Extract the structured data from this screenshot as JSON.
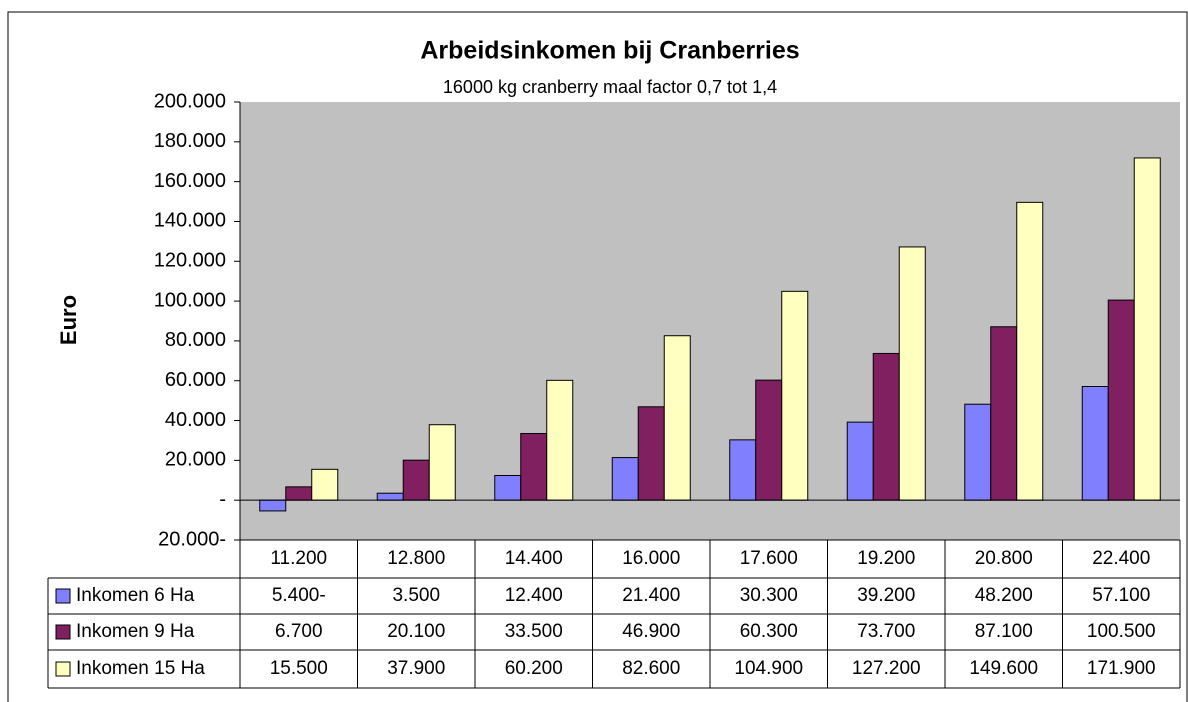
{
  "chart_data": {
    "type": "bar",
    "title": "Arbeidsinkomen bij Cranberries",
    "subtitle": "16000 kg cranberry maal factor 0,7 tot 1,4",
    "y_label": "Euro",
    "categories": [
      "11.200",
      "12.800",
      "14.400",
      "16.000",
      "17.600",
      "19.200",
      "20.800",
      "22.400"
    ],
    "series": [
      {
        "name": "Inkomen 6 Ha",
        "color": "#8080ff",
        "values": [
          -5400,
          3500,
          12400,
          21400,
          30300,
          39200,
          48200,
          57100
        ],
        "value_labels": [
          "5.400-",
          "3.500",
          "12.400",
          "21.400",
          "30.300",
          "39.200",
          "48.200",
          "57.100"
        ]
      },
      {
        "name": "Inkomen 9 Ha",
        "color": "#802060",
        "values": [
          6700,
          20100,
          33500,
          46900,
          60300,
          73700,
          87100,
          100500
        ],
        "value_labels": [
          "6.700",
          "20.100",
          "33.500",
          "46.900",
          "60.300",
          "73.700",
          "87.100",
          "100.500"
        ]
      },
      {
        "name": "Inkomen 15 Ha",
        "color": "#ffffc0",
        "values": [
          15500,
          37900,
          60200,
          82600,
          104900,
          127200,
          149600,
          171900
        ],
        "value_labels": [
          "15.500",
          "37.900",
          "60.200",
          "82.600",
          "104.900",
          "127.200",
          "149.600",
          "171.900"
        ]
      }
    ],
    "ylim": [
      -20000,
      200000
    ],
    "yticks": [
      {
        "value": -20000,
        "label": "20.000-"
      },
      {
        "value": 0,
        "label": "-"
      },
      {
        "value": 20000,
        "label": "20.000"
      },
      {
        "value": 40000,
        "label": "40.000"
      },
      {
        "value": 60000,
        "label": "60.000"
      },
      {
        "value": 80000,
        "label": "80.000"
      },
      {
        "value": 100000,
        "label": "100.000"
      },
      {
        "value": 120000,
        "label": "120.000"
      },
      {
        "value": 140000,
        "label": "140.000"
      },
      {
        "value": 160000,
        "label": "160.000"
      },
      {
        "value": 180000,
        "label": "180.000"
      },
      {
        "value": 200000,
        "label": "200.000"
      }
    ],
    "grid": false,
    "plot_background": "#c0c0c0"
  }
}
